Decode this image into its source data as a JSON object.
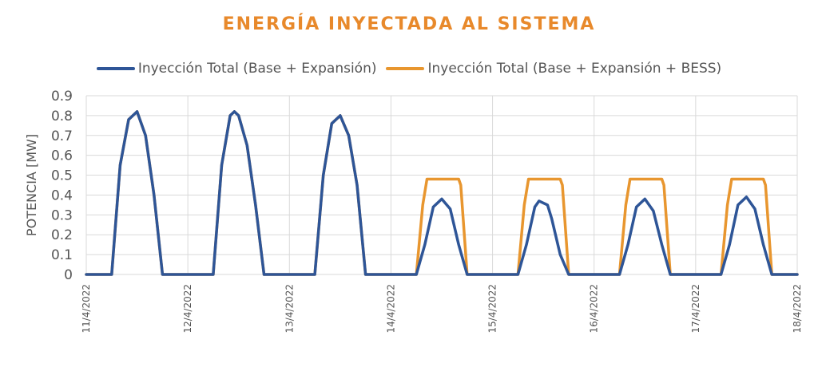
{
  "chart_data": {
    "type": "line",
    "title": "ENERGÍA INYECTADA AL SISTEMA",
    "ylabel": "POTENCIA [MW]",
    "xlabel": "",
    "ylim": [
      0,
      0.9
    ],
    "yticks": [
      "0",
      "0.1",
      "0.2",
      "0.3",
      "0.4",
      "0.5",
      "0.6",
      "0.7",
      "0.8",
      "0.9"
    ],
    "xticks": [
      "11/4/2022",
      "12/4/2022",
      "13/4/2022",
      "14/4/2022",
      "15/4/2022",
      "16/4/2022",
      "17/4/2022",
      "18/4/2022"
    ],
    "grid": true,
    "legend_position": "top",
    "series": [
      {
        "name": "Inyección Total (Base + Expansión)",
        "color": "#2e5597",
        "points": [
          [
            "11/4 00:00",
            0
          ],
          [
            "11/4 06:00",
            0
          ],
          [
            "11/4 08:00",
            0.55
          ],
          [
            "11/4 10:00",
            0.78
          ],
          [
            "11/4 12:00",
            0.82
          ],
          [
            "11/4 14:00",
            0.7
          ],
          [
            "11/4 16:00",
            0.4
          ],
          [
            "11/4 18:00",
            0
          ],
          [
            "11/4 24:00",
            0
          ],
          [
            "12/4 06:00",
            0
          ],
          [
            "12/4 08:00",
            0.55
          ],
          [
            "12/4 10:00",
            0.8
          ],
          [
            "12/4 11:00",
            0.82
          ],
          [
            "12/4 12:00",
            0.8
          ],
          [
            "12/4 14:00",
            0.65
          ],
          [
            "12/4 16:00",
            0.35
          ],
          [
            "12/4 18:00",
            0
          ],
          [
            "12/4 24:00",
            0
          ],
          [
            "13/4 06:00",
            0
          ],
          [
            "13/4 08:00",
            0.5
          ],
          [
            "13/4 10:00",
            0.76
          ],
          [
            "13/4 12:00",
            0.8
          ],
          [
            "13/4 14:00",
            0.7
          ],
          [
            "13/4 16:00",
            0.45
          ],
          [
            "13/4 18:00",
            0
          ],
          [
            "13/4 24:00",
            0
          ],
          [
            "14/4 06:00",
            0
          ],
          [
            "14/4 08:00",
            0.15
          ],
          [
            "14/4 10:00",
            0.34
          ],
          [
            "14/4 12:00",
            0.38
          ],
          [
            "14/4 14:00",
            0.33
          ],
          [
            "14/4 16:00",
            0.15
          ],
          [
            "14/4 18:00",
            0
          ],
          [
            "14/4 24:00",
            0
          ],
          [
            "15/4 06:00",
            0
          ],
          [
            "15/4 08:00",
            0.15
          ],
          [
            "15/4 10:00",
            0.34
          ],
          [
            "15/4 11:00",
            0.37
          ],
          [
            "15/4 13:00",
            0.35
          ],
          [
            "15/4 14:00",
            0.28
          ],
          [
            "15/4 16:00",
            0.1
          ],
          [
            "15/4 18:00",
            0
          ],
          [
            "15/4 24:00",
            0
          ],
          [
            "16/4 06:00",
            0
          ],
          [
            "16/4 08:00",
            0.15
          ],
          [
            "16/4 10:00",
            0.34
          ],
          [
            "16/4 12:00",
            0.38
          ],
          [
            "16/4 14:00",
            0.32
          ],
          [
            "16/4 16:00",
            0.15
          ],
          [
            "16/4 18:00",
            0
          ],
          [
            "16/4 24:00",
            0
          ],
          [
            "17/4 06:00",
            0
          ],
          [
            "17/4 08:00",
            0.15
          ],
          [
            "17/4 10:00",
            0.35
          ],
          [
            "17/4 12:00",
            0.39
          ],
          [
            "17/4 14:00",
            0.33
          ],
          [
            "17/4 16:00",
            0.15
          ],
          [
            "17/4 18:00",
            0
          ],
          [
            "17/4 24:00",
            0
          ]
        ]
      },
      {
        "name": "Inyección Total (Base + Expansión + BESS)",
        "color": "#e8962f",
        "points": [
          [
            "11/4 00:00",
            0
          ],
          [
            "11/4 06:00",
            0
          ],
          [
            "11/4 08:00",
            0.55
          ],
          [
            "11/4 10:00",
            0.78
          ],
          [
            "11/4 12:00",
            0.82
          ],
          [
            "11/4 14:00",
            0.7
          ],
          [
            "11/4 16:00",
            0.4
          ],
          [
            "11/4 18:00",
            0
          ],
          [
            "11/4 24:00",
            0
          ],
          [
            "12/4 06:00",
            0
          ],
          [
            "12/4 08:00",
            0.55
          ],
          [
            "12/4 10:00",
            0.8
          ],
          [
            "12/4 11:00",
            0.82
          ],
          [
            "12/4 12:00",
            0.8
          ],
          [
            "12/4 14:00",
            0.65
          ],
          [
            "12/4 16:00",
            0.35
          ],
          [
            "12/4 18:00",
            0
          ],
          [
            "12/4 24:00",
            0
          ],
          [
            "13/4 06:00",
            0
          ],
          [
            "13/4 08:00",
            0.5
          ],
          [
            "13/4 10:00",
            0.76
          ],
          [
            "13/4 12:00",
            0.8
          ],
          [
            "13/4 14:00",
            0.7
          ],
          [
            "13/4 16:00",
            0.45
          ],
          [
            "13/4 18:00",
            0
          ],
          [
            "13/4 24:00",
            0
          ],
          [
            "14/4 06:00",
            0
          ],
          [
            "14/4 07:30",
            0.35
          ],
          [
            "14/4 08:30",
            0.48
          ],
          [
            "14/4 16:00",
            0.48
          ],
          [
            "14/4 16:30",
            0.45
          ],
          [
            "14/4 18:00",
            0
          ],
          [
            "14/4 24:00",
            0
          ],
          [
            "15/4 06:00",
            0
          ],
          [
            "15/4 07:30",
            0.35
          ],
          [
            "15/4 08:30",
            0.48
          ],
          [
            "15/4 16:00",
            0.48
          ],
          [
            "15/4 16:30",
            0.45
          ],
          [
            "15/4 18:00",
            0
          ],
          [
            "15/4 24:00",
            0
          ],
          [
            "16/4 06:00",
            0
          ],
          [
            "16/4 07:30",
            0.35
          ],
          [
            "16/4 08:30",
            0.48
          ],
          [
            "16/4 16:00",
            0.48
          ],
          [
            "16/4 16:30",
            0.45
          ],
          [
            "16/4 18:00",
            0
          ],
          [
            "16/4 24:00",
            0
          ],
          [
            "17/4 06:00",
            0
          ],
          [
            "17/4 07:30",
            0.35
          ],
          [
            "17/4 08:30",
            0.48
          ],
          [
            "17/4 16:00",
            0.48
          ],
          [
            "17/4 16:30",
            0.45
          ],
          [
            "17/4 18:00",
            0
          ],
          [
            "17/4 24:00",
            0
          ]
        ]
      }
    ]
  }
}
